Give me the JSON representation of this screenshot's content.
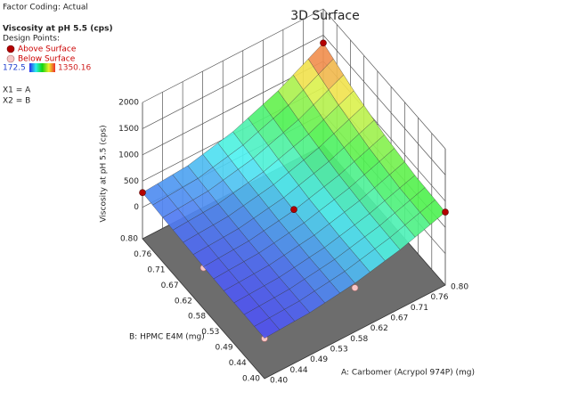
{
  "chart_data": {
    "type": "surface3d",
    "title": "3D Surface",
    "factor_coding": "Factor Coding: Actual",
    "response": "Viscosity at pH 5.5 (cps)",
    "design_points_label": "Design Points:",
    "above_label": "Above Surface",
    "below_label": "Below Surface",
    "above_color": "#b40000",
    "below_color": "#f7c6c6",
    "colorbar": {
      "min": 172.5,
      "max": 1350.16
    },
    "x1": "X1 = A",
    "x2": "X2 = B",
    "xlabel": "A: Carbomer (Acrypol 974P) (mg)",
    "ylabel": "B: HPMC E4M (mg)",
    "zlabel": "Viscosity at pH 5.5 (cps)",
    "xlim": [
      0.4,
      0.8
    ],
    "ylim": [
      0.4,
      0.8
    ],
    "zlim": [
      -600,
      2000
    ],
    "xticks": [
      {
        "value": 0.4,
        "label": "0.40"
      },
      {
        "value": 0.4444,
        "label": "0.44"
      },
      {
        "value": 0.4889,
        "label": "0.49"
      },
      {
        "value": 0.5333,
        "label": "0.53"
      },
      {
        "value": 0.5778,
        "label": "0.58"
      },
      {
        "value": 0.6222,
        "label": "0.62"
      },
      {
        "value": 0.6667,
        "label": "0.67"
      },
      {
        "value": 0.7111,
        "label": "0.71"
      },
      {
        "value": 0.7556,
        "label": "0.76"
      },
      {
        "value": 0.8,
        "label": "0.80"
      }
    ],
    "yticks": [
      {
        "value": 0.4,
        "label": "0.40"
      },
      {
        "value": 0.4444,
        "label": "0.44"
      },
      {
        "value": 0.4889,
        "label": "0.49"
      },
      {
        "value": 0.5333,
        "label": "0.53"
      },
      {
        "value": 0.5778,
        "label": "0.58"
      },
      {
        "value": 0.6222,
        "label": "0.62"
      },
      {
        "value": 0.6667,
        "label": "0.67"
      },
      {
        "value": 0.7111,
        "label": "0.71"
      },
      {
        "value": 0.7556,
        "label": "0.76"
      },
      {
        "value": 0.8,
        "label": "0.80"
      }
    ],
    "zticks": [
      0,
      500,
      1000,
      1500,
      2000
    ],
    "surface": {
      "x": [
        0.4,
        0.5,
        0.6,
        0.7,
        0.8
      ],
      "y": [
        0.4,
        0.5,
        0.6,
        0.7,
        0.8
      ],
      "z": [
        [
          172,
          211,
          327,
          521,
          792
        ],
        [
          179,
          219,
          341,
          543,
          827
        ],
        [
          199,
          245,
          382,
          611,
          932
        ],
        [
          233,
          287,
          451,
          724,
          1106
        ],
        [
          280,
          347,
          548,
          882,
          1350
        ]
      ]
    },
    "design_points": [
      {
        "x": 0.4,
        "y": 0.8,
        "z": 280,
        "position": "above"
      },
      {
        "x": 0.8,
        "y": 0.8,
        "z": 1350,
        "position": "above"
      },
      {
        "x": 0.8,
        "y": 0.4,
        "z": 793,
        "position": "above"
      },
      {
        "x": 0.6,
        "y": 0.6,
        "z": 400,
        "position": "above"
      },
      {
        "x": 0.4,
        "y": 0.4,
        "z": 165,
        "position": "below"
      },
      {
        "x": 0.4,
        "y": 0.6,
        "z": 180,
        "position": "below"
      },
      {
        "x": 0.6,
        "y": 0.4,
        "z": 240,
        "position": "below"
      }
    ]
  }
}
